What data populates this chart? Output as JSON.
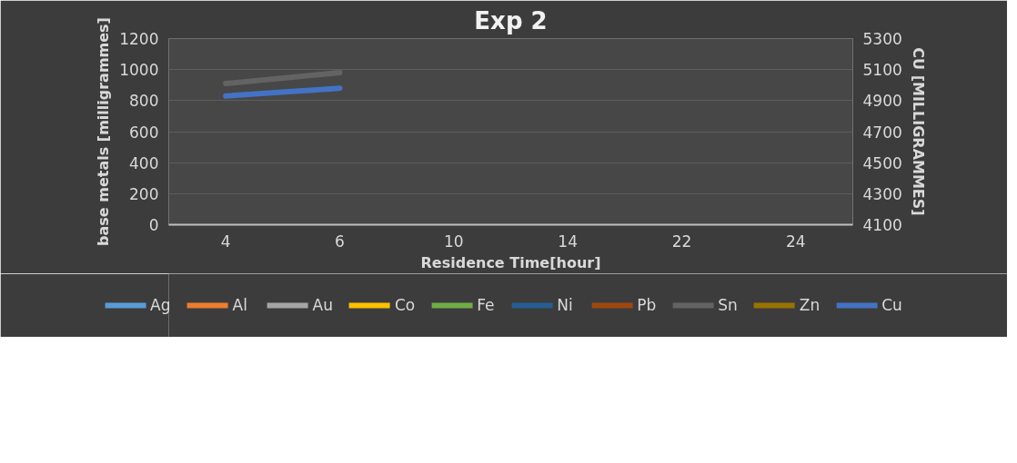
{
  "chart_data": {
    "type": "line",
    "title": "Exp 2",
    "xlabel": "Residence Time[hour]",
    "ylabel": "base metals [milligrammes]",
    "y2label": "CU [MILLIGRAMMES]",
    "categories": [
      "4",
      "6",
      "10",
      "14",
      "22",
      "24"
    ],
    "series": [
      {
        "name": "Ag",
        "color": "#5b9bd5",
        "values": [
          null,
          null,
          null,
          null,
          null,
          null
        ]
      },
      {
        "name": "Al",
        "color": "#ed7d31",
        "values": [
          null,
          null,
          null,
          null,
          null,
          null
        ]
      },
      {
        "name": "Au",
        "color": "#a5a5a5",
        "values": [
          null,
          null,
          null,
          null,
          null,
          null
        ]
      },
      {
        "name": "Co",
        "color": "#ffc000",
        "values": [
          null,
          null,
          null,
          null,
          null,
          null
        ]
      },
      {
        "name": "Fe",
        "color": "#70ad47",
        "values": [
          null,
          null,
          null,
          null,
          null,
          null
        ]
      },
      {
        "name": "Ni",
        "color": "#255e91",
        "values": [
          null,
          null,
          null,
          null,
          null,
          null
        ]
      },
      {
        "name": "Pb",
        "color": "#9e480e",
        "values": [
          null,
          null,
          null,
          null,
          null,
          null
        ]
      },
      {
        "name": "Sn",
        "color": "#636363",
        "values": [
          910,
          980,
          null,
          null,
          null,
          null
        ]
      },
      {
        "name": "Zn",
        "color": "#997300",
        "values": [
          null,
          null,
          null,
          null,
          null,
          null
        ]
      },
      {
        "name": "Cu",
        "color": "#4472c4",
        "axis": "y2",
        "values": [
          4930,
          4980,
          null,
          null,
          null,
          null
        ]
      }
    ],
    "ylim": [
      0,
      1200
    ],
    "yticks": [
      0,
      200,
      400,
      600,
      800,
      1000,
      1200
    ],
    "y2lim": [
      4100,
      5300
    ],
    "y2ticks": [
      4100,
      4300,
      4500,
      4700,
      4900,
      5100,
      5300
    ],
    "grid": "y",
    "legend": "bottom",
    "marker": "none",
    "line_style": "solid"
  }
}
